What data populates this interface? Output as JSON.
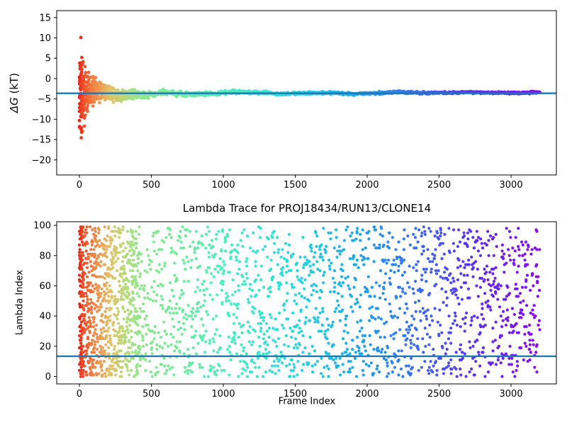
{
  "figure": {
    "background": "#ffffff",
    "spine_color": "#000000",
    "tick_label_color": "#000000"
  },
  "colormap": {
    "name": "rainbow-by-frame-order (red to violet)",
    "stops": [
      "#e81e12",
      "#f4763a",
      "#e2c169",
      "#abe081",
      "#77eb97",
      "#45eec2",
      "#29d8df",
      "#1caae8",
      "#3a6cf2",
      "#5f2bef",
      "#8b0af5"
    ]
  },
  "frame_density_segments": [
    {
      "f0": 0,
      "f1": 25,
      "frac": 0.05
    },
    {
      "f0": 25,
      "f1": 120,
      "frac": 0.08
    },
    {
      "f0": 120,
      "f1": 420,
      "frac": 0.22
    },
    {
      "f0": 420,
      "f1": 3199,
      "frac": 0.65
    }
  ],
  "chart_data": [
    {
      "type": "scatter",
      "title": "",
      "xlabel": "",
      "ylabel": "ΔG (kT)",
      "ylabel_math": "ΔG",
      "ylabel_units": " (kT)",
      "xlim": [
        -158,
        3315
      ],
      "ylim": [
        -23.7,
        16.7
      ],
      "xticks": {
        "values": [
          0,
          500,
          1000,
          1500,
          2000,
          2500,
          3000
        ],
        "labels": [
          "0",
          "500",
          "1000",
          "1500",
          "2000",
          "2500",
          "3000"
        ]
      },
      "yticks": {
        "values": [
          15,
          10,
          5,
          0,
          -5,
          -10,
          -15,
          -20
        ],
        "labels": [
          "15",
          "10",
          "5",
          "0",
          "−5",
          "−10",
          "−15",
          "−20"
        ]
      },
      "grid": false,
      "legend": null,
      "hline": {
        "y": -3.62,
        "color": "#1f77b4",
        "width": 2.4
      },
      "series": {
        "kind": "convergence-trace",
        "name": "running ΔG estimate vs frame",
        "n": 1500,
        "x_range": [
          0,
          3199
        ],
        "final_value": -3.62,
        "early_scatter_range": [
          -13.2,
          10.1
        ],
        "point_radius": 2.4
      },
      "outlier_points": [
        [
          10,
          10.1
        ],
        [
          14,
          3.3
        ],
        [
          16,
          1.6
        ],
        [
          11,
          -12.5
        ],
        [
          15,
          -13.2
        ],
        [
          9,
          -9.3
        ],
        [
          20,
          -8.9
        ],
        [
          24,
          -7.6
        ],
        [
          40,
          -9.0
        ],
        [
          52,
          -7.4
        ],
        [
          64,
          1.5
        ]
      ]
    },
    {
      "type": "scatter",
      "title": "Lambda Trace for PROJ18434/RUN13/CLONE14",
      "xlabel": "Frame Index",
      "ylabel": "Lambda Index",
      "xlim": [
        -158,
        3315
      ],
      "ylim": [
        -4.9,
        102.4
      ],
      "xticks": {
        "values": [
          0,
          500,
          1000,
          1500,
          2000,
          2500,
          3000
        ],
        "labels": [
          "0",
          "500",
          "1000",
          "1500",
          "2000",
          "2500",
          "3000"
        ]
      },
      "yticks": {
        "values": [
          0,
          20,
          40,
          60,
          80,
          100
        ],
        "labels": [
          "0",
          "20",
          "40",
          "60",
          "80",
          "100"
        ]
      },
      "grid": false,
      "legend": null,
      "hline": {
        "y": 13.4,
        "color": "#1f77b4",
        "width": 2.4
      },
      "series": {
        "kind": "uniform-lambda-scatter",
        "name": "lambda index per frame",
        "n": 2600,
        "x_range": [
          0,
          3199
        ],
        "lambda_range": [
          0,
          99
        ],
        "point_radius": 2.1
      }
    }
  ]
}
